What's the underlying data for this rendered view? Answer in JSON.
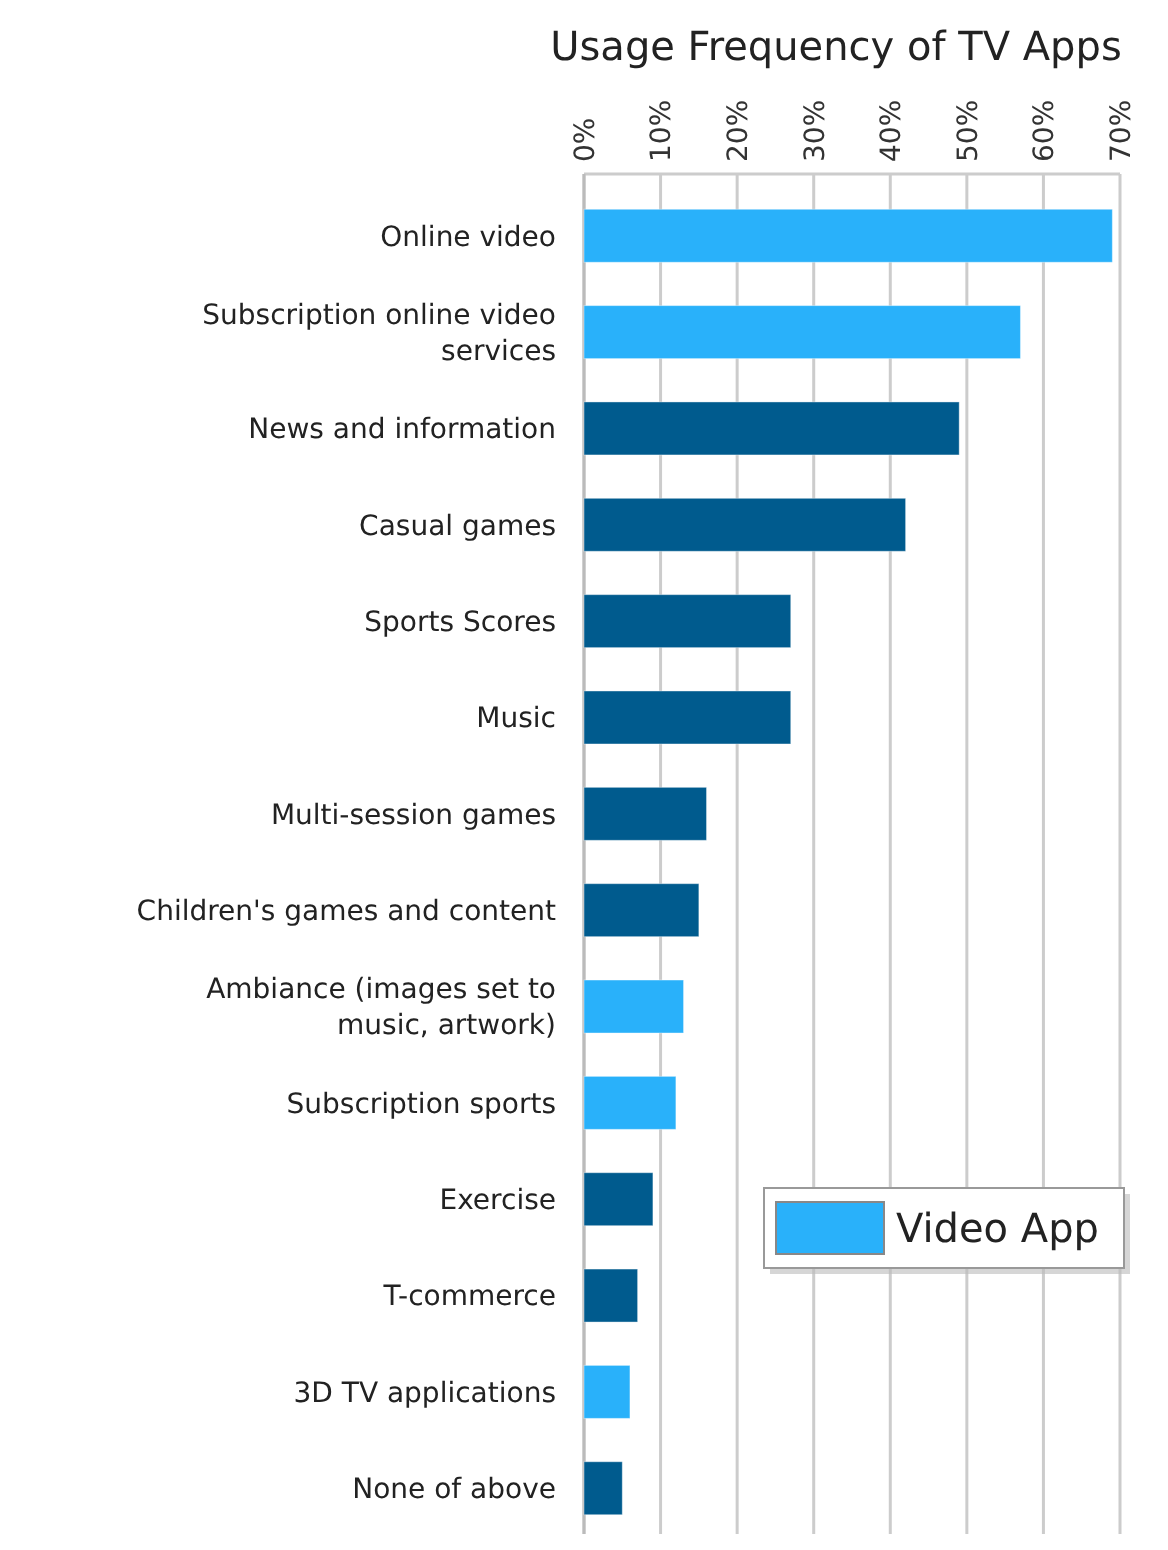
{
  "chart_data": {
    "type": "bar",
    "orientation": "horizontal",
    "title": "Usage Frequency of TV Apps",
    "categories": [
      "Online video",
      "Subscription online video services",
      "News and information",
      "Casual games",
      "Sports Scores",
      "Music",
      "Multi-session games",
      "Children's games and content",
      "Ambiance (images set to music, artwork)",
      "Subscription sports",
      "Exercise",
      "T-commerce",
      "3D TV applications",
      "None of above"
    ],
    "series": [
      {
        "name": "Video App",
        "color": "#29b1fa",
        "values": [
          69,
          57,
          49,
          42,
          27,
          27,
          16,
          15,
          13,
          12,
          9,
          7,
          6,
          5
        ],
        "colors": [
          "#29b1fa",
          "#29b1fa",
          "#005b8e",
          "#005b8e",
          "#005b8e",
          "#005b8e",
          "#005b8e",
          "#005b8e",
          "#29b1fa",
          "#29b1fa",
          "#005b8e",
          "#005b8e",
          "#29b1fa",
          "#005b8e"
        ]
      }
    ],
    "xlim": [
      0,
      70
    ],
    "xticks": [
      {
        "value": 0,
        "label": "0%"
      },
      {
        "value": 10,
        "label": "10%"
      },
      {
        "value": 20,
        "label": "20%"
      },
      {
        "value": 30,
        "label": "30%"
      },
      {
        "value": 40,
        "label": "40%"
      },
      {
        "value": 50,
        "label": "50%"
      },
      {
        "value": 60,
        "label": "60%"
      },
      {
        "value": 70,
        "label": "70%"
      }
    ],
    "grid": "x",
    "legend": "bottom right"
  }
}
